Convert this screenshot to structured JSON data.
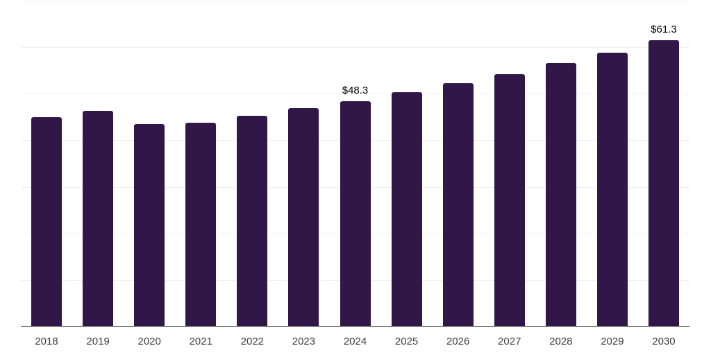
{
  "chart_data": {
    "type": "bar",
    "title": "",
    "xlabel": "",
    "ylabel": "",
    "categories": [
      "2018",
      "2019",
      "2020",
      "2021",
      "2022",
      "2023",
      "2024",
      "2025",
      "2026",
      "2027",
      "2028",
      "2029",
      "2030"
    ],
    "values": [
      44.8,
      46.1,
      43.4,
      43.6,
      45.1,
      46.7,
      48.3,
      50.2,
      52.1,
      54.1,
      56.5,
      58.7,
      61.3
    ],
    "data_labels": [
      null,
      null,
      null,
      null,
      null,
      null,
      "$48.3",
      null,
      null,
      null,
      null,
      null,
      "$61.3"
    ],
    "ylim": [
      0,
      70
    ],
    "grid": "horizontal",
    "grid_interval": 10,
    "legend_position": "none"
  },
  "style": {
    "bar_color": "#301747",
    "axis_line_color": "#2b2b2b",
    "grid_color": "#f0f0f3",
    "tick_label_color": "#3d3d3d",
    "data_label_color": "#000000",
    "background_color": "#ffffff"
  }
}
